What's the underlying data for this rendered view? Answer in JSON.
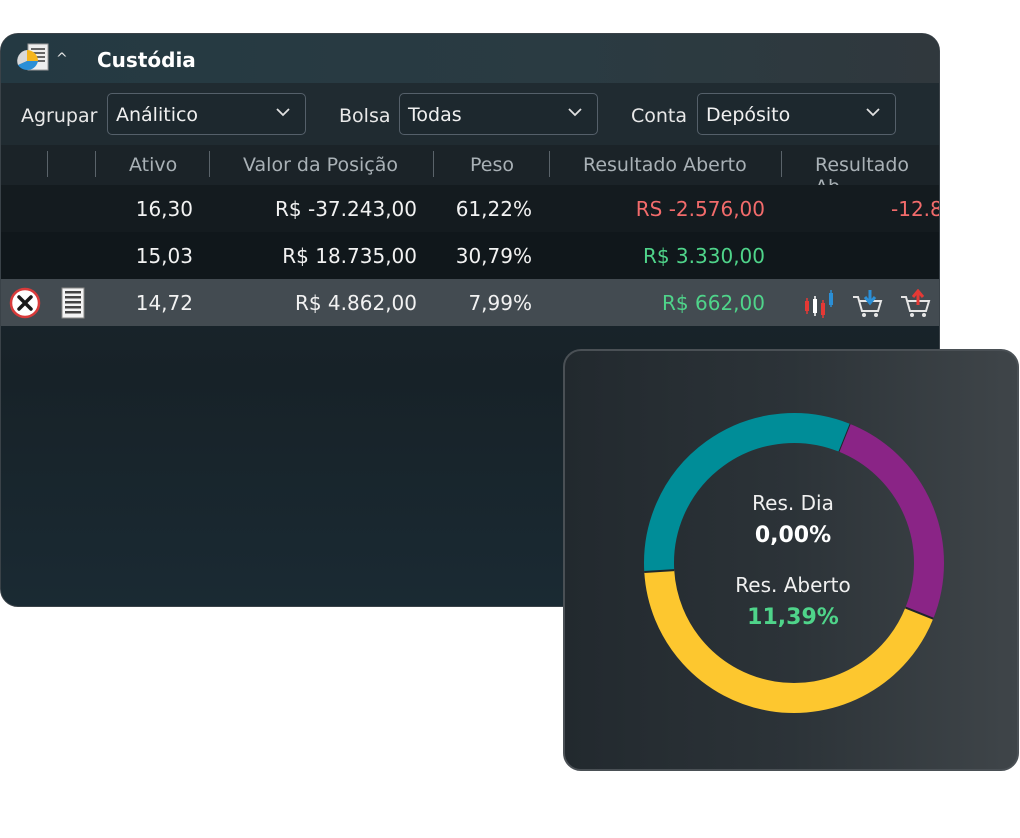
{
  "window": {
    "title": "Custódia",
    "caret": "^",
    "icon": "portfolio-report-icon"
  },
  "filters": {
    "agrupar_label": "Agrupar",
    "agrupar_value": "Análitico",
    "bolsa_label": "Bolsa",
    "bolsa_value": "Todas",
    "conta_label": "Conta",
    "conta_value": "Depósito"
  },
  "table": {
    "columns": [
      "Ativo",
      "Valor da Posição",
      "Peso",
      "Resultado Aberto",
      "Resultado Ab"
    ],
    "rows": [
      {
        "ativo": "16,30",
        "valor": "R$ -37.243,00",
        "peso": "61,22%",
        "resultado": "RS -2.576,00",
        "resultado2": "-12.8"
      },
      {
        "ativo": "15,03",
        "valor": "R$ 18.735,00",
        "peso": "30,79%",
        "resultado": "R$ 3.330,00",
        "resultado2": ""
      },
      {
        "ativo": "14,72",
        "valor": "R$ 4.862,00",
        "peso": "7,99%",
        "resultado": "R$ 662,00",
        "resultado2": ""
      }
    ]
  },
  "summary": {
    "res_dia_label": "Res. Dia",
    "res_dia_value": "0,00%",
    "res_aberto_label": "Res. Aberto",
    "res_aberto_value": "11,39%",
    "donut": [
      {
        "name": "purple",
        "fraction": 0.25,
        "color": "#8a2486"
      },
      {
        "name": "yellow",
        "fraction": 0.43,
        "color": "#fdc72f"
      },
      {
        "name": "teal",
        "fraction": 0.32,
        "color": "#008d98"
      }
    ]
  },
  "colors": {
    "negative": "#f26b6b",
    "positive": "#4fd48a",
    "selected_row": "#434b51"
  }
}
